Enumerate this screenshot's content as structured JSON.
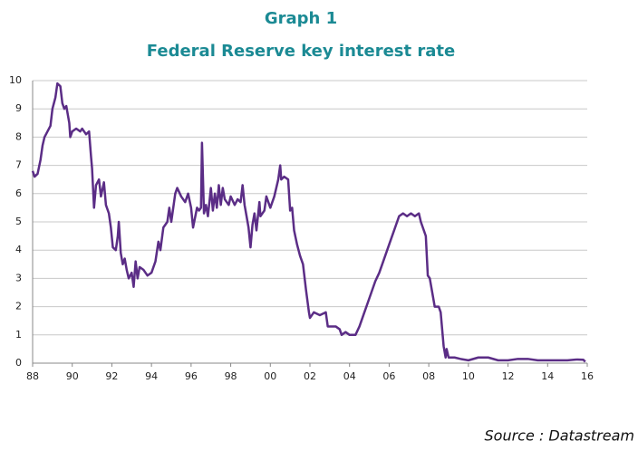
{
  "chart_data": {
    "type": "line",
    "title": "Graph 1",
    "subtitle": "Federal Reserve key interest rate",
    "source": "Source : Datastream",
    "color": "#5b2d86",
    "grid": true,
    "x": [
      1988.0,
      1988.1,
      1988.25,
      1988.4,
      1988.5,
      1988.6,
      1988.75,
      1988.9,
      1989.0,
      1989.15,
      1989.25,
      1989.4,
      1989.5,
      1989.6,
      1989.7,
      1989.85,
      1989.9,
      1990.0,
      1990.2,
      1990.4,
      1990.5,
      1990.7,
      1990.85,
      1990.95,
      1991.0,
      1991.1,
      1991.2,
      1991.35,
      1991.45,
      1991.6,
      1991.7,
      1991.85,
      1991.95,
      1992.05,
      1992.2,
      1992.3,
      1992.35,
      1992.45,
      1992.55,
      1992.65,
      1992.75,
      1992.85,
      1993.0,
      1993.1,
      1993.2,
      1993.3,
      1993.4,
      1993.6,
      1993.8,
      1994.0,
      1994.2,
      1994.35,
      1994.45,
      1994.6,
      1994.8,
      1994.9,
      1995.0,
      1995.2,
      1995.3,
      1995.5,
      1995.7,
      1995.85,
      1996.0,
      1996.1,
      1996.3,
      1996.4,
      1996.5,
      1996.55,
      1996.65,
      1996.75,
      1996.85,
      1997.0,
      1997.1,
      1997.2,
      1997.3,
      1997.4,
      1997.5,
      1997.6,
      1997.7,
      1997.9,
      1998.0,
      1998.2,
      1998.35,
      1998.5,
      1998.6,
      1998.7,
      1998.8,
      1998.9,
      1999.0,
      1999.1,
      1999.2,
      1999.3,
      1999.45,
      1999.5,
      1999.7,
      1999.8,
      2000.0,
      2000.2,
      2000.4,
      2000.5,
      2000.55,
      2000.7,
      2000.9,
      2001.0,
      2001.1,
      2001.2,
      2001.35,
      2001.5,
      2001.65,
      2001.8,
      2001.95,
      2002.0,
      2002.2,
      2002.5,
      2002.8,
      2002.9,
      2003.1,
      2003.3,
      2003.5,
      2003.6,
      2003.8,
      2004.0,
      2004.3,
      2004.5,
      2004.7,
      2004.9,
      2005.1,
      2005.3,
      2005.5,
      2005.7,
      2005.9,
      2006.1,
      2006.3,
      2006.5,
      2006.7,
      2006.9,
      2007.1,
      2007.3,
      2007.5,
      2007.6,
      2007.7,
      2007.85,
      2007.95,
      2008.05,
      2008.15,
      2008.3,
      2008.5,
      2008.6,
      2008.75,
      2008.85,
      2008.9,
      2009.0,
      2009.3,
      2009.6,
      2010.0,
      2010.5,
      2011.0,
      2011.5,
      2012.0,
      2012.5,
      2013.0,
      2013.5,
      2014.0,
      2014.5,
      2015.0,
      2015.5,
      2015.8,
      2015.9
    ],
    "values": [
      6.8,
      6.6,
      6.7,
      7.2,
      7.7,
      8.0,
      8.2,
      8.4,
      9.0,
      9.4,
      9.9,
      9.8,
      9.2,
      9.0,
      9.1,
      8.5,
      8.0,
      8.2,
      8.3,
      8.2,
      8.3,
      8.1,
      8.2,
      7.3,
      6.9,
      5.5,
      6.3,
      6.5,
      5.9,
      6.4,
      5.6,
      5.3,
      4.8,
      4.1,
      4.0,
      4.5,
      5.0,
      3.9,
      3.5,
      3.7,
      3.3,
      3.0,
      3.2,
      2.7,
      3.6,
      3.0,
      3.4,
      3.3,
      3.1,
      3.2,
      3.6,
      4.3,
      4.0,
      4.8,
      5.0,
      5.5,
      5.0,
      6.0,
      6.2,
      5.9,
      5.7,
      6.0,
      5.5,
      4.8,
      5.5,
      5.4,
      5.5,
      7.8,
      5.3,
      5.6,
      5.2,
      6.2,
      5.4,
      6.0,
      5.5,
      6.3,
      5.6,
      6.2,
      5.8,
      5.6,
      5.9,
      5.6,
      5.8,
      5.7,
      6.3,
      5.6,
      5.2,
      4.8,
      4.1,
      4.9,
      5.3,
      4.7,
      5.7,
      5.2,
      5.4,
      5.9,
      5.5,
      5.9,
      6.5,
      7.0,
      6.5,
      6.6,
      6.5,
      5.4,
      5.5,
      4.7,
      4.2,
      3.8,
      3.5,
      2.6,
      1.8,
      1.6,
      1.8,
      1.7,
      1.8,
      1.3,
      1.3,
      1.3,
      1.2,
      1.0,
      1.1,
      1.0,
      1.0,
      1.3,
      1.7,
      2.1,
      2.5,
      2.9,
      3.2,
      3.6,
      4.0,
      4.4,
      4.8,
      5.2,
      5.3,
      5.2,
      5.3,
      5.2,
      5.3,
      5.0,
      4.8,
      4.5,
      3.1,
      3.0,
      2.6,
      2.0,
      2.0,
      1.8,
      0.6,
      0.2,
      0.5,
      0.2,
      0.2,
      0.15,
      0.1,
      0.2,
      0.2,
      0.1,
      0.1,
      0.15,
      0.15,
      0.1,
      0.1,
      0.1,
      0.1,
      0.13,
      0.12,
      0.05
    ],
    "xlim": [
      1988,
      2016
    ],
    "ylim": [
      0,
      10
    ],
    "yticks": [
      0,
      1,
      2,
      3,
      4,
      5,
      6,
      7,
      8,
      9,
      10
    ],
    "xticks": [
      {
        "value": 1988,
        "label": "88"
      },
      {
        "value": 1990,
        "label": "90"
      },
      {
        "value": 1992,
        "label": "92"
      },
      {
        "value": 1994,
        "label": "94"
      },
      {
        "value": 1996,
        "label": "96"
      },
      {
        "value": 1998,
        "label": "98"
      },
      {
        "value": 2000,
        "label": "00"
      },
      {
        "value": 2002,
        "label": "02"
      },
      {
        "value": 2004,
        "label": "04"
      },
      {
        "value": 2006,
        "label": "06"
      },
      {
        "value": 2008,
        "label": "08"
      },
      {
        "value": 2010,
        "label": "10"
      },
      {
        "value": 2012,
        "label": "12"
      },
      {
        "value": 2014,
        "label": "14"
      },
      {
        "value": 2016,
        "label": "16"
      }
    ]
  }
}
